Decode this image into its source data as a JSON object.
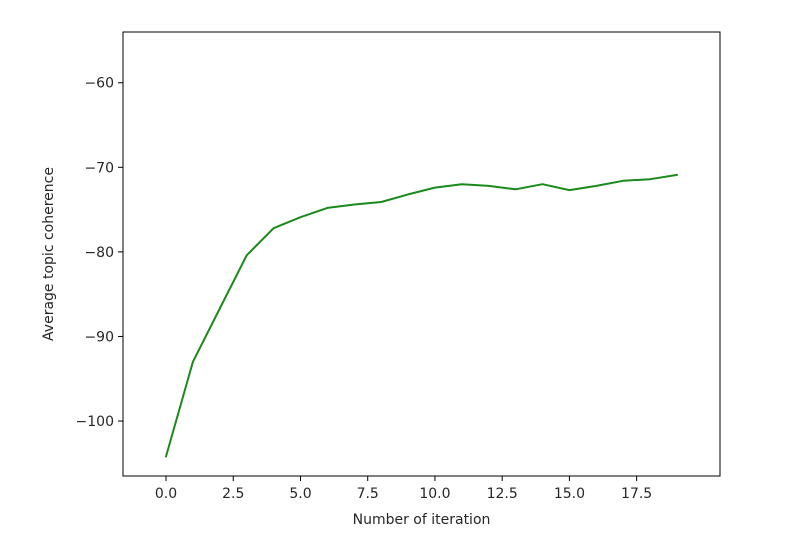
{
  "chart_data": {
    "type": "line",
    "title": "",
    "xlabel": "Number of iteration",
    "ylabel": "Average topic coherence",
    "xlim": [
      -1.6,
      20.6
    ],
    "ylim": [
      -106.5,
      -54
    ],
    "grid": false,
    "x_ticks": [
      0.0,
      2.5,
      5.0,
      7.5,
      10.0,
      12.5,
      15.0,
      17.5
    ],
    "x_tick_labels": [
      "0.0",
      "2.5",
      "5.0",
      "7.5",
      "10.0",
      "12.5",
      "15.0",
      "17.5"
    ],
    "y_ticks": [
      -60,
      -70,
      -80,
      -90,
      -100
    ],
    "y_tick_labels": [
      "−60",
      "−70",
      "−80",
      "−90",
      "−100"
    ],
    "series": [
      {
        "color": "#1a8a1a",
        "x": [
          0,
          1,
          2,
          3,
          4,
          5,
          6,
          7,
          8,
          9,
          10,
          11,
          12,
          13,
          14,
          15,
          16,
          17,
          18,
          19
        ],
        "y": [
          -104.2,
          -93.0,
          -86.7,
          -80.4,
          -77.2,
          -75.9,
          -74.8,
          -74.4,
          -74.1,
          -73.2,
          -72.4,
          -72.0,
          -72.2,
          -72.6,
          -72.0,
          -72.7,
          -72.2,
          -71.6,
          -71.4,
          -70.9
        ]
      }
    ]
  }
}
